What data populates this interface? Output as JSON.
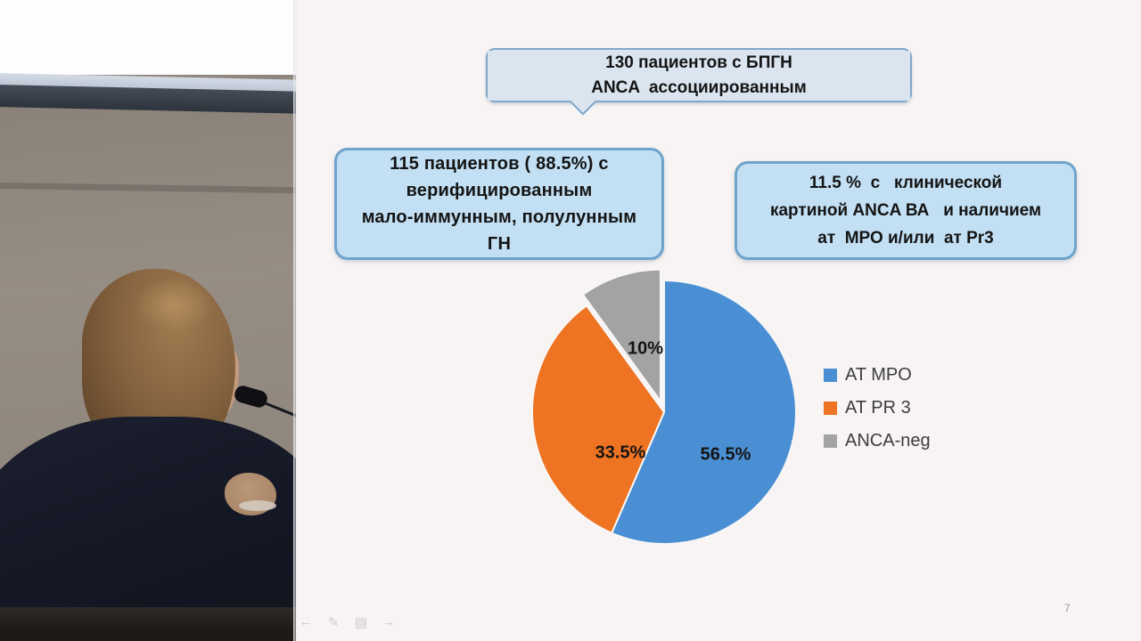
{
  "slide": {
    "top_callout": {
      "lines": [
        "130 пациентов с БПГН",
        "ANCA  ассоциированным"
      ]
    },
    "left_box": {
      "lines": [
        "115 пациентов ( 88.5%) с",
        "верифицированным",
        "мало-иммунным, полулунным",
        "ГН"
      ]
    },
    "right_box": {
      "lines": [
        "11.5 %  с   клинической",
        "картиной ANCA ВА   и наличием",
        "ат  МРО и/или  ат Pr3"
      ]
    },
    "page_number": "7"
  },
  "chart_data": {
    "type": "pie",
    "title": "",
    "slices": [
      {
        "label": "AT MPO",
        "value": 56.5,
        "display": "56.5%",
        "color": "#4a8fd3",
        "exploded": false
      },
      {
        "label": "AT PR 3",
        "value": 33.5,
        "display": "33.5%",
        "color": "#ee7322",
        "exploded": false
      },
      {
        "label": "ANCA-neg",
        "value": 10,
        "display": "10%",
        "color": "#a3a3a3",
        "exploded": true
      }
    ],
    "start_angle_deg": 0,
    "direction": "clockwise",
    "legend_position": "right",
    "data_labels": "inside, bold, black"
  },
  "presenter_toolbar": {
    "icons": [
      {
        "name": "previous-slide",
        "glyph": "←"
      },
      {
        "name": "pen-tool",
        "glyph": "✎"
      },
      {
        "name": "slide-menu",
        "glyph": "▤"
      },
      {
        "name": "next-slide",
        "glyph": "→"
      }
    ]
  }
}
